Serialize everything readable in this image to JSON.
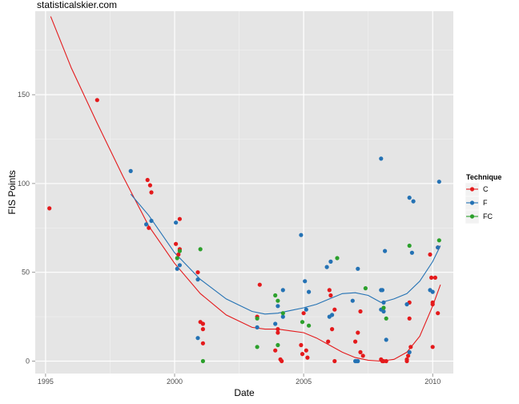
{
  "header": {
    "site": "statisticalskier.com"
  },
  "chart_data": {
    "type": "scatter",
    "xlabel": "Date",
    "ylabel": "FIS Points",
    "xlim": [
      1994.6,
      2010.8
    ],
    "ylim": [
      -7,
      197
    ],
    "x_ticks": [
      1995,
      2000,
      2005,
      2010
    ],
    "y_ticks": [
      0,
      50,
      100,
      150
    ],
    "grid": true,
    "legend": {
      "title": "Technique",
      "position": "right"
    },
    "series": [
      {
        "name": "C",
        "color": "#e41a1c",
        "points": [
          [
            1995.15,
            86
          ],
          [
            1997.0,
            147
          ],
          [
            1998.95,
            102
          ],
          [
            1999.05,
            99
          ],
          [
            1999.1,
            95
          ],
          [
            1999.0,
            75
          ],
          [
            2000.2,
            80
          ],
          [
            2000.05,
            66
          ],
          [
            2000.15,
            60
          ],
          [
            2000.2,
            63
          ],
          [
            2000.9,
            50
          ],
          [
            2001.0,
            22
          ],
          [
            2001.1,
            21
          ],
          [
            2001.1,
            18
          ],
          [
            2001.1,
            10
          ],
          [
            2003.3,
            43
          ],
          [
            2003.2,
            25
          ],
          [
            2003.9,
            6
          ],
          [
            2004.0,
            18
          ],
          [
            2004.1,
            1
          ],
          [
            2004.15,
            0
          ],
          [
            2004.0,
            16
          ],
          [
            2004.9,
            9
          ],
          [
            2004.95,
            4
          ],
          [
            2005.1,
            6
          ],
          [
            2005.15,
            2
          ],
          [
            2005.0,
            27
          ],
          [
            2006.0,
            40
          ],
          [
            2006.05,
            37
          ],
          [
            2006.1,
            18
          ],
          [
            2006.2,
            29
          ],
          [
            2006.2,
            0
          ],
          [
            2005.95,
            11
          ],
          [
            2007.1,
            16
          ],
          [
            2007.0,
            11
          ],
          [
            2007.2,
            28
          ],
          [
            2007.2,
            5
          ],
          [
            2007.3,
            3
          ],
          [
            2008.0,
            1
          ],
          [
            2008.05,
            0
          ],
          [
            2008.1,
            0
          ],
          [
            2008.2,
            0
          ],
          [
            2009.0,
            1
          ],
          [
            2009.05,
            3
          ],
          [
            2009.1,
            24
          ],
          [
            2009.1,
            33
          ],
          [
            2009.15,
            8
          ],
          [
            2009.0,
            0
          ],
          [
            2009.9,
            60
          ],
          [
            2009.95,
            47
          ],
          [
            2010.0,
            33
          ],
          [
            2010.0,
            32
          ],
          [
            2010.1,
            47
          ],
          [
            2010.0,
            8
          ],
          [
            2010.2,
            27
          ],
          [
            2010.2,
            64
          ]
        ],
        "trend": [
          [
            1995.2,
            194
          ],
          [
            1996.0,
            165
          ],
          [
            1997.0,
            134
          ],
          [
            1998.0,
            104
          ],
          [
            1999.0,
            76
          ],
          [
            2000.0,
            55
          ],
          [
            2001.0,
            38
          ],
          [
            2002.0,
            26
          ],
          [
            2003.0,
            19
          ],
          [
            2003.5,
            18
          ],
          [
            2004.0,
            18
          ],
          [
            2004.5,
            17
          ],
          [
            2005.0,
            16
          ],
          [
            2005.5,
            13
          ],
          [
            2006.0,
            9
          ],
          [
            2006.5,
            5
          ],
          [
            2007.0,
            2
          ],
          [
            2007.5,
            0.5
          ],
          [
            2008.0,
            0
          ],
          [
            2008.5,
            1
          ],
          [
            2009.0,
            5
          ],
          [
            2009.5,
            14
          ],
          [
            2010.0,
            31
          ],
          [
            2010.3,
            43
          ]
        ]
      },
      {
        "name": "F",
        "color": "#2472b4",
        "points": [
          [
            1998.3,
            107
          ],
          [
            1998.9,
            77
          ],
          [
            1999.1,
            79
          ],
          [
            2000.05,
            78
          ],
          [
            2000.1,
            52
          ],
          [
            2000.2,
            54
          ],
          [
            2000.9,
            46
          ],
          [
            2000.9,
            13
          ],
          [
            2003.2,
            19
          ],
          [
            2003.9,
            21
          ],
          [
            2004.0,
            31
          ],
          [
            2004.2,
            25
          ],
          [
            2004.2,
            40
          ],
          [
            2004.9,
            71
          ],
          [
            2005.05,
            45
          ],
          [
            2005.1,
            29
          ],
          [
            2005.2,
            39
          ],
          [
            2005.9,
            53
          ],
          [
            2006.05,
            56
          ],
          [
            2006.0,
            25
          ],
          [
            2006.1,
            26
          ],
          [
            2006.9,
            34
          ],
          [
            2007.1,
            52
          ],
          [
            2007.0,
            0
          ],
          [
            2007.05,
            0
          ],
          [
            2007.1,
            0
          ],
          [
            2008.0,
            114
          ],
          [
            2008.0,
            40
          ],
          [
            2008.05,
            40
          ],
          [
            2008.1,
            33
          ],
          [
            2008.15,
            62
          ],
          [
            2008.2,
            12
          ],
          [
            2008.0,
            29
          ],
          [
            2008.1,
            28
          ],
          [
            2009.0,
            32
          ],
          [
            2009.1,
            92
          ],
          [
            2009.25,
            90
          ],
          [
            2009.2,
            61
          ],
          [
            2009.1,
            5
          ],
          [
            2009.9,
            40
          ],
          [
            2010.0,
            39
          ],
          [
            2010.25,
            101
          ],
          [
            2010.2,
            64
          ]
        ],
        "trend": [
          [
            1998.3,
            94
          ],
          [
            1999.0,
            82
          ],
          [
            2000.0,
            61
          ],
          [
            2001.0,
            46
          ],
          [
            2002.0,
            35
          ],
          [
            2003.0,
            28
          ],
          [
            2003.5,
            26.5
          ],
          [
            2004.0,
            27
          ],
          [
            2004.5,
            28.5
          ],
          [
            2005.0,
            30
          ],
          [
            2005.5,
            32
          ],
          [
            2006.0,
            35
          ],
          [
            2006.5,
            38
          ],
          [
            2007.0,
            38.5
          ],
          [
            2007.5,
            37
          ],
          [
            2008.0,
            33
          ],
          [
            2008.5,
            35
          ],
          [
            2009.0,
            38
          ],
          [
            2009.5,
            45
          ],
          [
            2010.0,
            56
          ],
          [
            2010.3,
            65
          ]
        ]
      },
      {
        "name": "FC",
        "color": "#2ca02c",
        "points": [
          [
            2000.1,
            58
          ],
          [
            2000.2,
            62
          ],
          [
            2001.0,
            63
          ],
          [
            2001.1,
            0
          ],
          [
            2003.2,
            24
          ],
          [
            2003.2,
            8
          ],
          [
            2003.9,
            37
          ],
          [
            2004.0,
            34
          ],
          [
            2004.0,
            9
          ],
          [
            2004.2,
            27
          ],
          [
            2004.95,
            22
          ],
          [
            2005.2,
            20
          ],
          [
            2006.3,
            58
          ],
          [
            2007.4,
            41
          ],
          [
            2008.1,
            30
          ],
          [
            2008.2,
            24
          ],
          [
            2009.1,
            65
          ],
          [
            2010.25,
            68
          ]
        ]
      }
    ]
  }
}
